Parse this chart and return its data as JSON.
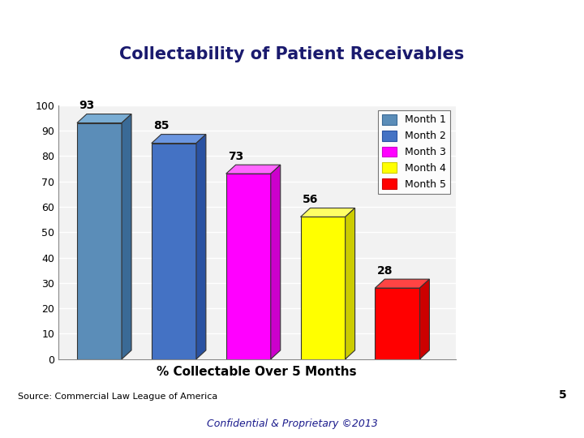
{
  "title": "Collectability of Patient Receivables",
  "values": [
    93,
    85,
    73,
    56,
    28
  ],
  "labels": [
    "Month 1",
    "Month 2",
    "Month 3",
    "Month 4",
    "Month 5"
  ],
  "bar_colors_face": [
    "#5B8DB8",
    "#4472C4",
    "#FF00FF",
    "#FFFF00",
    "#FF0000"
  ],
  "bar_colors_top": [
    "#7AADD4",
    "#6B96E0",
    "#FF66FF",
    "#FFFF66",
    "#FF4444"
  ],
  "bar_colors_side": [
    "#3A6A96",
    "#2A52A2",
    "#CC00CC",
    "#CCCC00",
    "#CC0000"
  ],
  "xlabel": "% Collectable Over 5 Months",
  "ylim": [
    0,
    100
  ],
  "yticks": [
    0,
    10,
    20,
    30,
    40,
    50,
    60,
    70,
    80,
    90,
    100
  ],
  "source_text": "Source: Commercial Law League of America",
  "footer_text": "Confidential & Proprietary ©2013",
  "page_number": "5",
  "background_color": "#FFFFFF",
  "title_color": "#1A1A6E",
  "xlabel_color": "#000000",
  "grid_color": "#FFFFFF",
  "plot_bg_color": "#F2F2F2"
}
